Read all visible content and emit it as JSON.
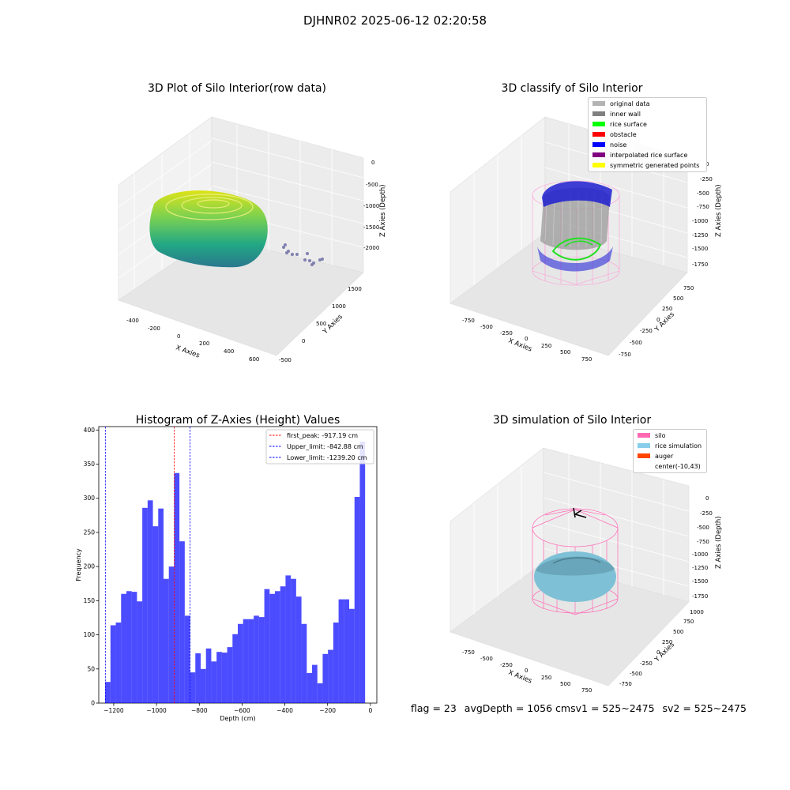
{
  "suptitle": "DJHNR02 2025-06-12 02:20:58",
  "plots": {
    "raw": {
      "title": "3D Plot of Silo Interior(row data)",
      "xlabel": "X Axies",
      "ylabel": "Y Axies",
      "zlabel": "Z Axies (Depth)",
      "xticks": [
        "-400",
        "-200",
        "0",
        "200",
        "400",
        "600"
      ],
      "yticks": [
        "-500",
        "0",
        "500",
        "1000",
        "1500"
      ],
      "zticks": [
        "0",
        "-500",
        "-1000",
        "-1500",
        "-2000"
      ]
    },
    "classify": {
      "title": "3D classify of Silo Interior",
      "xlabel": "X Axies",
      "ylabel": "Y Axies",
      "zlabel": "Z Axies (Depth)",
      "xticks": [
        "-750",
        "-500",
        "-250",
        "0",
        "250",
        "500",
        "750"
      ],
      "yticks": [
        "-750",
        "-500",
        "-250",
        "0",
        "250",
        "500",
        "750"
      ],
      "zticks": [
        "0",
        "-250",
        "-500",
        "-750",
        "-1000",
        "-1250",
        "-1500",
        "-1750"
      ],
      "legend": [
        {
          "label": "original data",
          "color": "#b3b3b3"
        },
        {
          "label": "inner wall",
          "color": "#808080"
        },
        {
          "label": "rice surface",
          "color": "#00ff00"
        },
        {
          "label": "obstacle",
          "color": "#ff0000"
        },
        {
          "label": "noise",
          "color": "#0000ff"
        },
        {
          "label": "interpolated rice surface",
          "color": "#800080"
        },
        {
          "label": "symmetric generated points",
          "color": "#ffff00"
        }
      ]
    },
    "simulation": {
      "title": "3D simulation of Silo Interior",
      "xlabel": "X Axies",
      "ylabel": "Y Axies",
      "zlabel": "Z Axies (Depth)",
      "xticks": [
        "-750",
        "-500",
        "-250",
        "0",
        "250",
        "500",
        "750"
      ],
      "yticks": [
        "-750",
        "-500",
        "-250",
        "0",
        "250",
        "500",
        "750",
        "1000"
      ],
      "zticks": [
        "0",
        "-250",
        "-500",
        "-750",
        "-1000",
        "-1250",
        "-1500",
        "-1750"
      ],
      "legend": [
        {
          "label": "silo",
          "color": "#ff69b4"
        },
        {
          "label": "rice simulation",
          "color": "#87ceeb"
        },
        {
          "label": "auger",
          "color": "#ff4500"
        },
        {
          "label": "center(-10,43)",
          "color": "#ffffff"
        }
      ]
    }
  },
  "chart_data": {
    "type": "bar",
    "title": "Histogram of Z-Axies (Height) Values",
    "xlabel": "Depth (cm)",
    "ylabel": "Frequency",
    "xlim": [
      -1270,
      30
    ],
    "ylim": [
      0,
      405
    ],
    "xticks": [
      -1200,
      -1000,
      -800,
      -600,
      -400,
      -200,
      0
    ],
    "yticks": [
      0,
      50,
      100,
      150,
      200,
      250,
      300,
      350,
      400
    ],
    "bar_color": "#0000ff",
    "bin_start": -1240,
    "bin_width": 24.8,
    "values": [
      31,
      114,
      118,
      160,
      164,
      163,
      149,
      286,
      297,
      259,
      285,
      182,
      200,
      337,
      237,
      128,
      45,
      73,
      50,
      80,
      61,
      75,
      74,
      82,
      101,
      116,
      123,
      123,
      128,
      126,
      167,
      160,
      164,
      171,
      187,
      182,
      156,
      116,
      44,
      56,
      29,
      72,
      78,
      118,
      152,
      152,
      138,
      302,
      383
    ],
    "vlines": [
      {
        "x": -917.19,
        "color": "#ff0000",
        "label": "first_peak: -917.19 cm"
      },
      {
        "x": -842.88,
        "color": "#0000ff",
        "label": "Upper_limit: -842.88 cm"
      },
      {
        "x": -1239.2,
        "color": "#0000ff",
        "label": "Lower_limit: -1239.20 cm"
      }
    ],
    "legend_position": "top-right"
  },
  "status": {
    "flag": "flag = 23",
    "avg": "avgDepth = 1056 cmsv1 = 525~2475",
    "sv2": "sv2 = 525~2475"
  }
}
